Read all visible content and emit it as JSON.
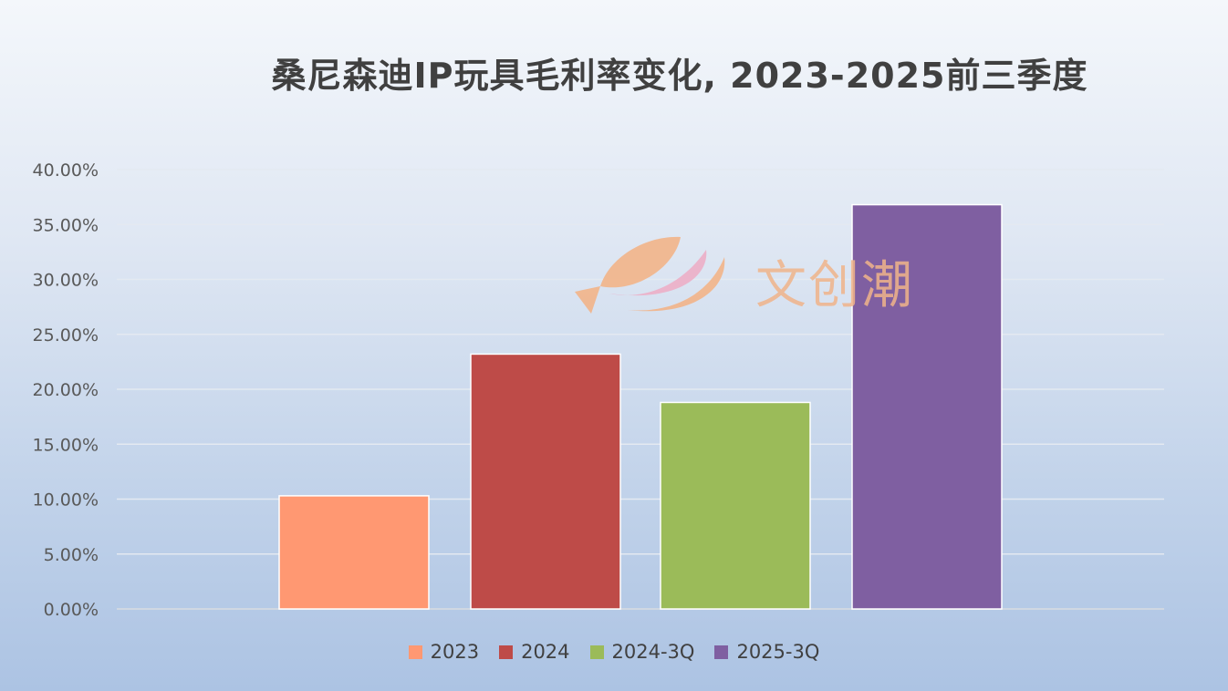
{
  "chart_data": {
    "type": "bar",
    "title": "桑尼森迪IP玩具毛利率变化, 2023-2025前三季度",
    "categories": [
      "2023",
      "2024",
      "2024-3Q",
      "2025-3Q"
    ],
    "values": [
      10.3,
      23.2,
      18.8,
      36.8
    ],
    "value_unit": "percent",
    "colors": [
      "#ff9872",
      "#be4b48",
      "#9bbb59",
      "#7f5fa1"
    ],
    "y_ticks": [
      "0.00%",
      "5.00%",
      "10.00%",
      "15.00%",
      "20.00%",
      "25.00%",
      "30.00%",
      "35.00%",
      "40.00%"
    ],
    "ylim": [
      0,
      40
    ],
    "grid": true,
    "legend": {
      "position": "bottom",
      "entries": [
        "2023",
        "2024",
        "2024-3Q",
        "2025-3Q"
      ]
    }
  },
  "watermark": {
    "text": "文创潮",
    "icon": "fish-leaf-logo"
  }
}
